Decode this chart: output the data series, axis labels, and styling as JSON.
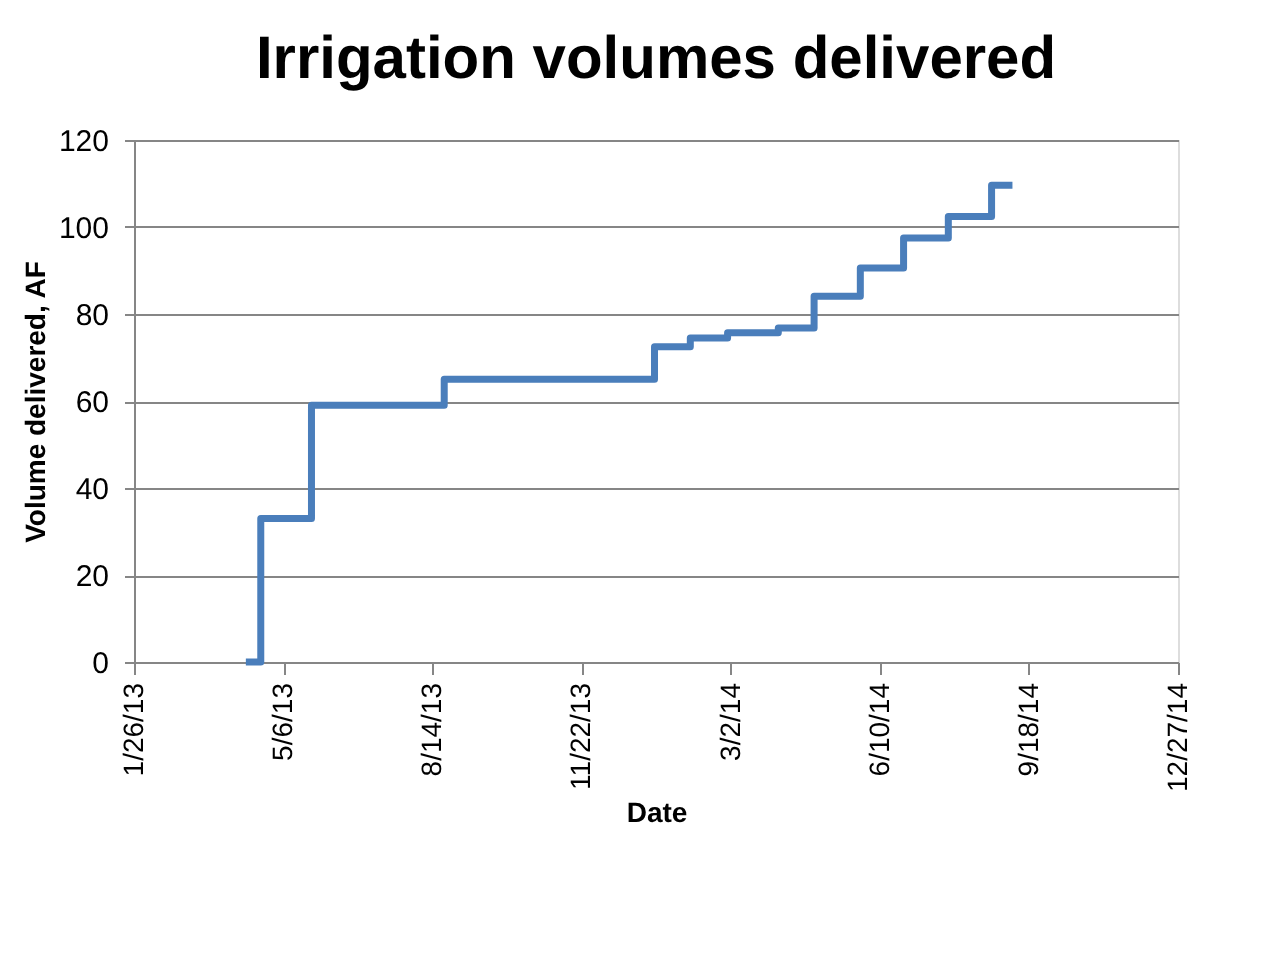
{
  "chart_data": {
    "type": "step",
    "title": "Irrigation volumes delivered",
    "xlabel": "Date",
    "ylabel": "Volume delivered, AF",
    "x": [
      "2013-04-11",
      "2013-04-21",
      "2013-05-25",
      "2013-08-22",
      "2014-01-10",
      "2014-02-03",
      "2014-02-28",
      "2014-04-03",
      "2014-04-27",
      "2014-05-28",
      "2014-06-26",
      "2014-07-26",
      "2014-08-24",
      "2014-09-07"
    ],
    "series": [
      {
        "color": "#4a7ebb",
        "values": [
          0,
          33,
          59,
          65,
          72.5,
          74.5,
          75.7,
          76.8,
          84.1,
          90.6,
          97.5,
          102.4,
          109.6,
          109.6
        ]
      }
    ],
    "xlim": [
      "2013-01-26",
      "2014-12-27"
    ],
    "xticks": [
      {
        "value": "2013-01-26",
        "label": "1/26/13"
      },
      {
        "value": "2013-05-06",
        "label": "5/6/13"
      },
      {
        "value": "2013-08-14",
        "label": "8/14/13"
      },
      {
        "value": "2013-11-22",
        "label": "11/22/13"
      },
      {
        "value": "2014-03-02",
        "label": "3/2/14"
      },
      {
        "value": "2014-06-10",
        "label": "6/10/14"
      },
      {
        "value": "2014-09-18",
        "label": "9/18/14"
      },
      {
        "value": "2014-12-27",
        "label": "12/27/14"
      }
    ],
    "ylim": [
      0,
      120
    ],
    "yticks": [
      0,
      20,
      40,
      60,
      80,
      100,
      120
    ],
    "grid": "y",
    "marker": "none",
    "line_style": "solid"
  }
}
